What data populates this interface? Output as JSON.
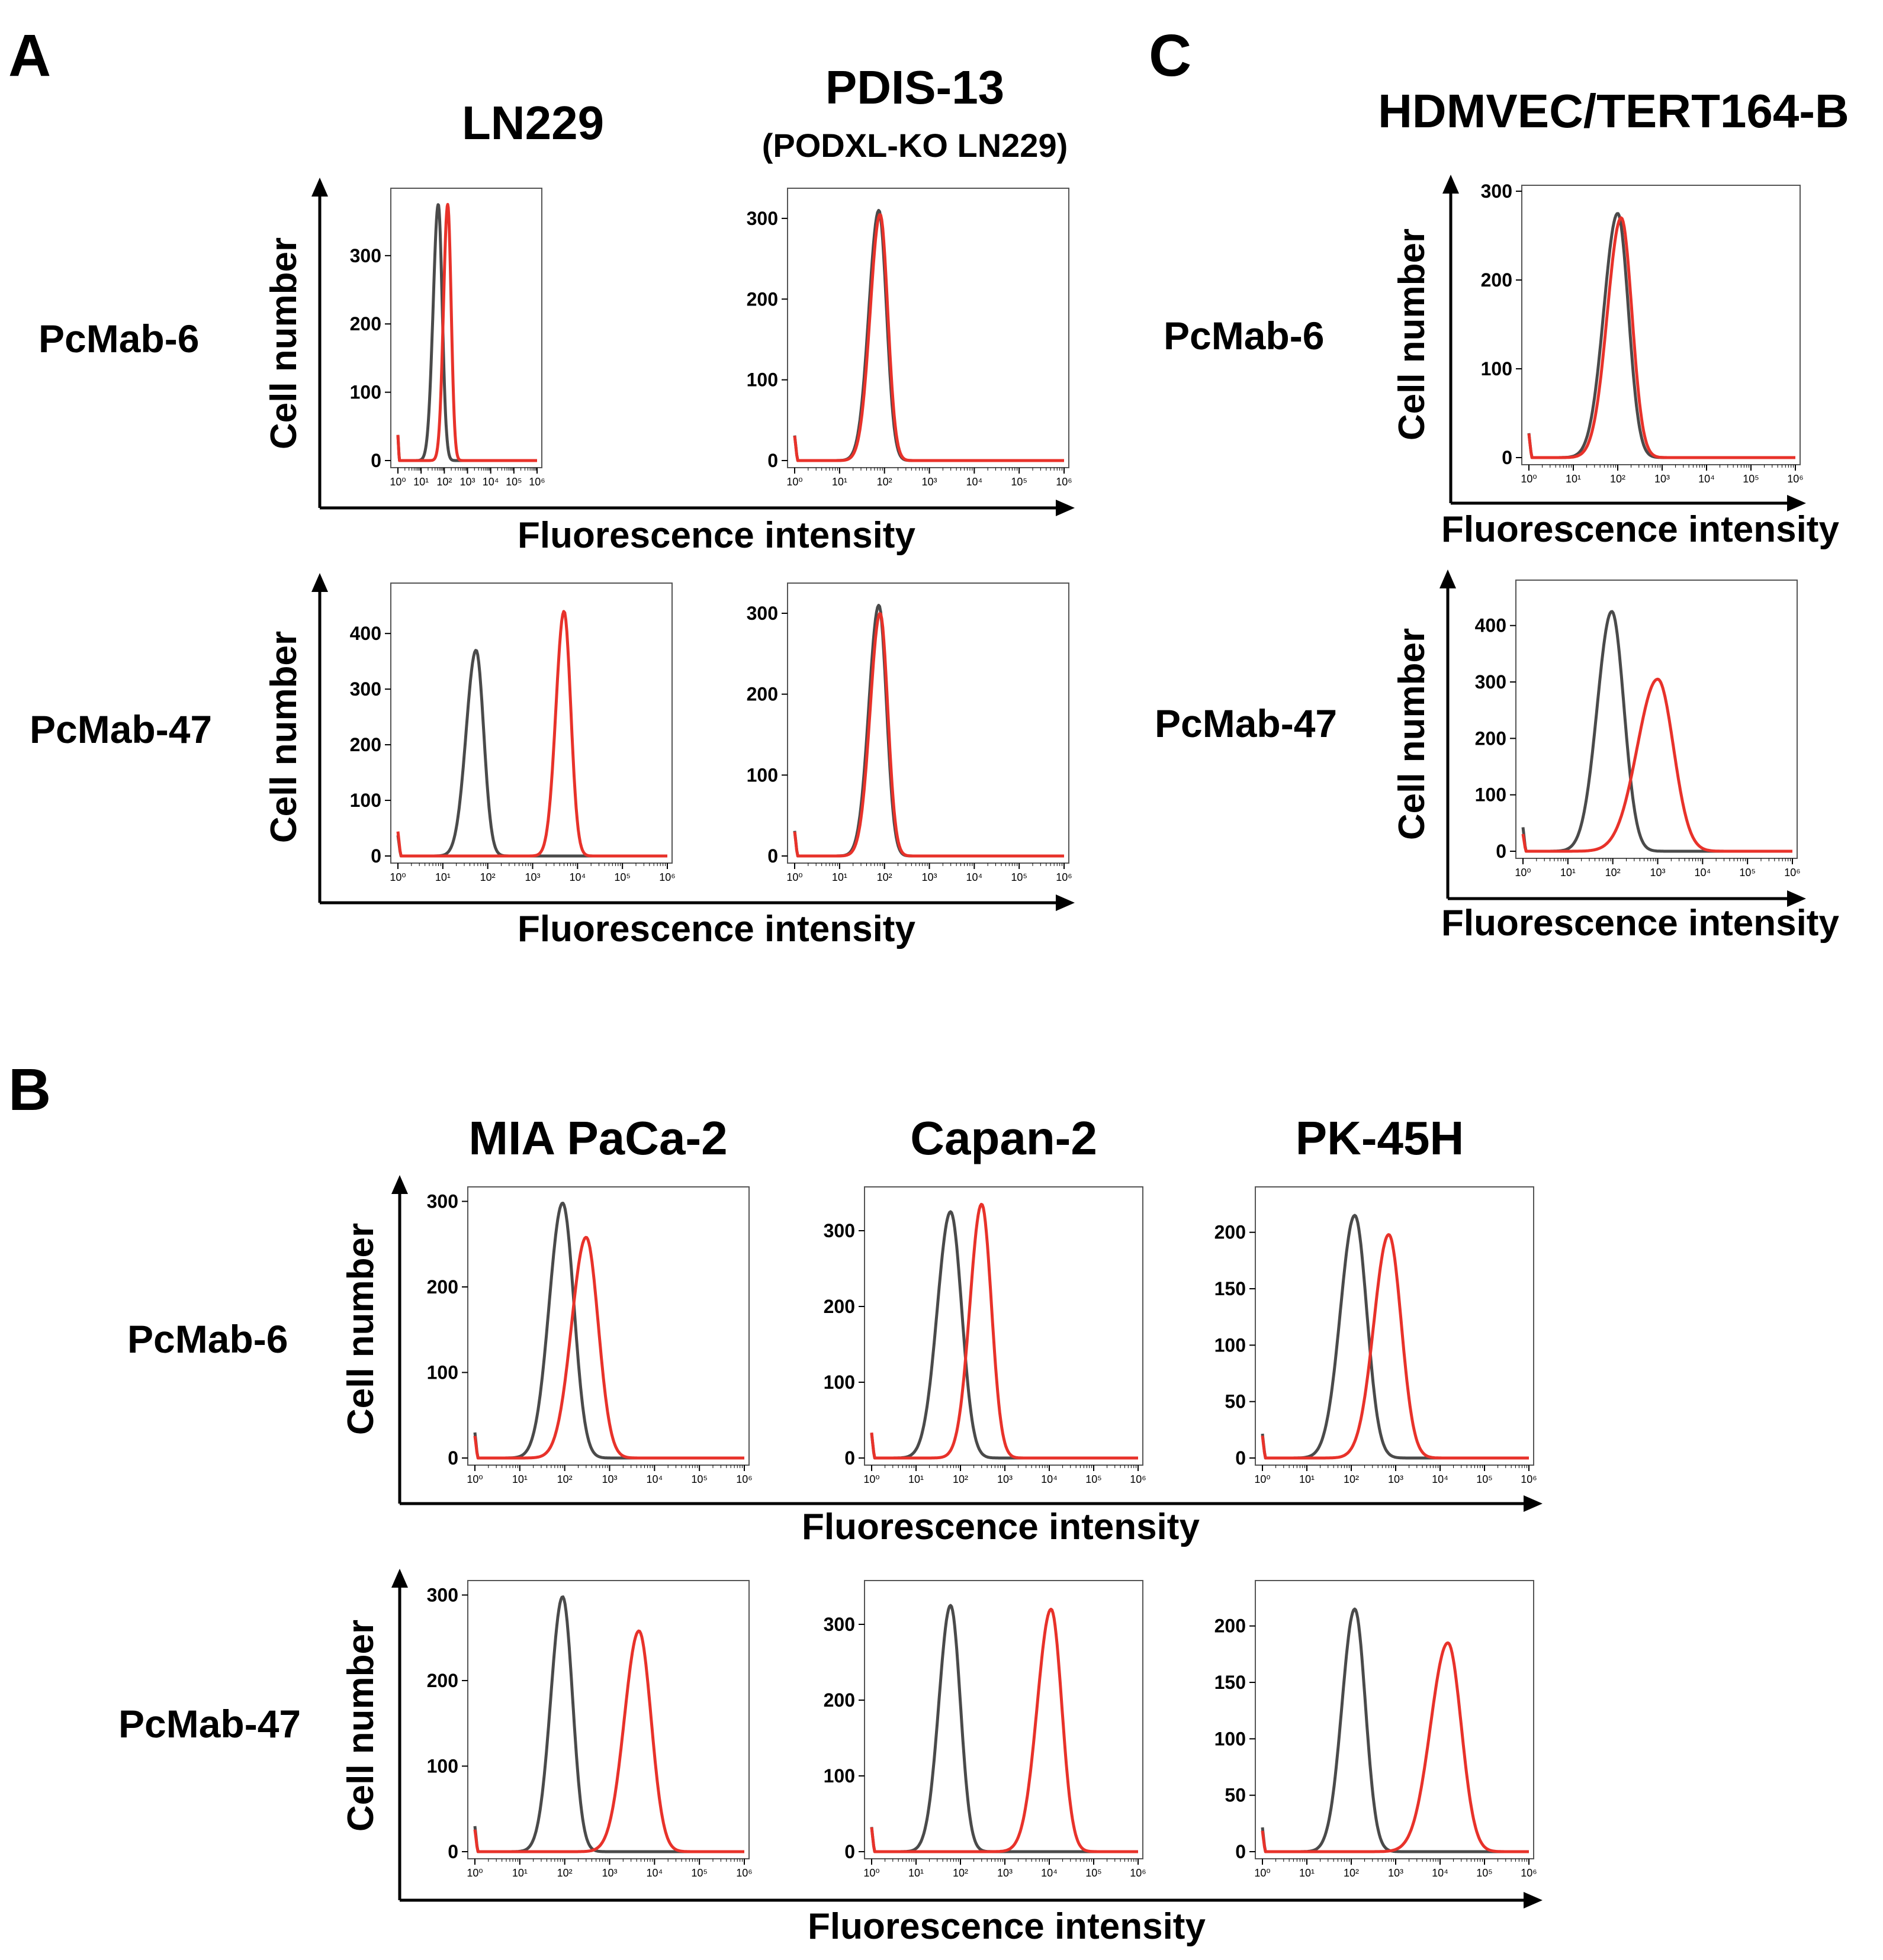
{
  "panels": {
    "A": {
      "letter": "A",
      "column_titles": [
        "LN229",
        "PDIS-13"
      ],
      "column_subtitles": [
        "",
        "(PODXL-KO LN229)"
      ],
      "row_labels": [
        "PcMab-6",
        "PcMab-47"
      ]
    },
    "B": {
      "letter": "B",
      "column_titles": [
        "MIA PaCa-2",
        "Capan-2",
        "PK-45H"
      ],
      "row_labels": [
        "PcMab-6",
        "PcMab-47"
      ]
    },
    "C": {
      "letter": "C",
      "column_titles": [
        "HDMVEC/TERT164-B"
      ],
      "row_labels": [
        "PcMab-6",
        "PcMab-47"
      ]
    }
  },
  "axis_text": {
    "ylabel": "Cell number",
    "xlabel": "Fluorescence intensity"
  },
  "colors": {
    "control": "#4a4a4a",
    "antibody": "#e8322a"
  },
  "chart_data": [
    {
      "type": "line",
      "panel": "A",
      "cell_line": "LN229",
      "antibody": "PcMab-6",
      "x_scale": "log",
      "xlim": [
        1,
        1000000
      ],
      "xticks": [
        "10⁰",
        "10¹",
        "10²",
        "10³",
        "10⁴",
        "10⁵",
        "10⁶"
      ],
      "ylim": [
        0,
        390
      ],
      "yticks": [
        0,
        100,
        200,
        300
      ],
      "series": [
        {
          "color": "control",
          "peak_x": 55,
          "peak_y": 375,
          "width": 0.17,
          "skew": 0.3
        },
        {
          "color": "antibody",
          "peak_x": 140,
          "peak_y": 375,
          "width": 0.15,
          "skew": 0.2
        }
      ]
    },
    {
      "type": "line",
      "panel": "A",
      "cell_line": "PDIS-13",
      "antibody": "PcMab-6",
      "x_scale": "log",
      "xlim": [
        1,
        1000000
      ],
      "xticks": [
        "10⁰",
        "10¹",
        "10²",
        "10³",
        "10⁴",
        "10⁵",
        "10⁶"
      ],
      "ylim": [
        0,
        330
      ],
      "yticks": [
        0,
        100,
        200,
        300
      ],
      "series": [
        {
          "color": "control",
          "peak_x": 75,
          "peak_y": 310,
          "width": 0.17,
          "skew": 0.3
        },
        {
          "color": "antibody",
          "peak_x": 80,
          "peak_y": 305,
          "width": 0.17,
          "skew": 0.3
        }
      ]
    },
    {
      "type": "line",
      "panel": "A",
      "cell_line": "LN229",
      "antibody": "PcMab-47",
      "x_scale": "log",
      "xlim": [
        1,
        1000000
      ],
      "xticks": [
        "10⁰",
        "10¹",
        "10²",
        "10³",
        "10⁴",
        "10⁵",
        "10⁶"
      ],
      "ylim": [
        0,
        480
      ],
      "yticks": [
        0,
        100,
        200,
        300,
        400
      ],
      "series": [
        {
          "color": "control",
          "peak_x": 55,
          "peak_y": 370,
          "width": 0.17,
          "skew": 0.3
        },
        {
          "color": "antibody",
          "peak_x": 5000,
          "peak_y": 440,
          "width": 0.15,
          "skew": 0.2
        }
      ]
    },
    {
      "type": "line",
      "panel": "A",
      "cell_line": "PDIS-13",
      "antibody": "PcMab-47",
      "x_scale": "log",
      "xlim": [
        1,
        1000000
      ],
      "xticks": [
        "10⁰",
        "10¹",
        "10²",
        "10³",
        "10⁴",
        "10⁵",
        "10⁶"
      ],
      "ylim": [
        0,
        330
      ],
      "yticks": [
        0,
        100,
        200,
        300
      ],
      "series": [
        {
          "color": "control",
          "peak_x": 75,
          "peak_y": 310,
          "width": 0.17,
          "skew": 0.3
        },
        {
          "color": "antibody",
          "peak_x": 80,
          "peak_y": 300,
          "width": 0.17,
          "skew": 0.3
        }
      ]
    },
    {
      "type": "line",
      "panel": "B",
      "cell_line": "MIA PaCa-2",
      "antibody": "PcMab-6",
      "x_scale": "log",
      "xlim": [
        1,
        1000000
      ],
      "xticks": [
        "10⁰",
        "10¹",
        "10²",
        "10³",
        "10⁴",
        "10⁵",
        "10⁶"
      ],
      "ylim": [
        0,
        310
      ],
      "yticks": [
        0,
        100,
        200,
        300
      ],
      "series": [
        {
          "color": "control",
          "peak_x": 90,
          "peak_y": 298,
          "width": 0.25,
          "skew": 0.2
        },
        {
          "color": "antibody",
          "peak_x": 300,
          "peak_y": 258,
          "width": 0.27,
          "skew": 0.2
        }
      ]
    },
    {
      "type": "line",
      "panel": "B",
      "cell_line": "Capan-2",
      "antibody": "PcMab-6",
      "x_scale": "log",
      "xlim": [
        1,
        1000000
      ],
      "xticks": [
        "10⁰",
        "10¹",
        "10²",
        "10³",
        "10⁴",
        "10⁵",
        "10⁶"
      ],
      "ylim": [
        0,
        350
      ],
      "yticks": [
        0,
        100,
        200,
        300
      ],
      "series": [
        {
          "color": "control",
          "peak_x": 60,
          "peak_y": 325,
          "width": 0.25,
          "skew": 0.2
        },
        {
          "color": "antibody",
          "peak_x": 300,
          "peak_y": 335,
          "width": 0.22,
          "skew": 0.2
        }
      ]
    },
    {
      "type": "line",
      "panel": "B",
      "cell_line": "PK-45H",
      "antibody": "PcMab-6",
      "x_scale": "log",
      "xlim": [
        1,
        1000000
      ],
      "xticks": [
        "10⁰",
        "10¹",
        "10²",
        "10³",
        "10⁴",
        "10⁵",
        "10⁶"
      ],
      "ylim": [
        0,
        235
      ],
      "yticks": [
        0,
        50,
        100,
        150,
        200
      ],
      "series": [
        {
          "color": "control",
          "peak_x": 120,
          "peak_y": 215,
          "width": 0.27,
          "skew": 0.2
        },
        {
          "color": "antibody",
          "peak_x": 700,
          "peak_y": 198,
          "width": 0.28,
          "skew": 0.2
        }
      ]
    },
    {
      "type": "line",
      "panel": "B",
      "cell_line": "MIA PaCa-2",
      "antibody": "PcMab-47",
      "x_scale": "log",
      "xlim": [
        1,
        1000000
      ],
      "xticks": [
        "10⁰",
        "10¹",
        "10²",
        "10³",
        "10⁴",
        "10⁵",
        "10⁶"
      ],
      "ylim": [
        0,
        310
      ],
      "yticks": [
        0,
        100,
        200,
        300
      ],
      "series": [
        {
          "color": "control",
          "peak_x": 90,
          "peak_y": 298,
          "width": 0.22,
          "skew": 0.2
        },
        {
          "color": "antibody",
          "peak_x": 4500,
          "peak_y": 258,
          "width": 0.27,
          "skew": 0.2
        }
      ]
    },
    {
      "type": "line",
      "panel": "B",
      "cell_line": "Capan-2",
      "antibody": "PcMab-47",
      "x_scale": "log",
      "xlim": [
        1,
        1000000
      ],
      "xticks": [
        "10⁰",
        "10¹",
        "10²",
        "10³",
        "10⁴",
        "10⁵",
        "10⁶"
      ],
      "ylim": [
        0,
        350
      ],
      "yticks": [
        0,
        100,
        200,
        300
      ],
      "series": [
        {
          "color": "control",
          "peak_x": 60,
          "peak_y": 325,
          "width": 0.22,
          "skew": 0.2
        },
        {
          "color": "antibody",
          "peak_x": 11000,
          "peak_y": 320,
          "width": 0.24,
          "skew": 0.3
        }
      ]
    },
    {
      "type": "line",
      "panel": "B",
      "cell_line": "PK-45H",
      "antibody": "PcMab-47",
      "x_scale": "log",
      "xlim": [
        1,
        1000000
      ],
      "xticks": [
        "10⁰",
        "10¹",
        "10²",
        "10³",
        "10⁴",
        "10⁵",
        "10⁶"
      ],
      "ylim": [
        0,
        235
      ],
      "yticks": [
        0,
        50,
        100,
        150,
        200
      ],
      "series": [
        {
          "color": "control",
          "peak_x": 120,
          "peak_y": 215,
          "width": 0.24,
          "skew": 0.2
        },
        {
          "color": "antibody",
          "peak_x": 15000,
          "peak_y": 185,
          "width": 0.3,
          "skew": 0.3
        }
      ]
    },
    {
      "type": "line",
      "panel": "C",
      "cell_line": "HDMVEC/TERT164-B",
      "antibody": "PcMab-6",
      "x_scale": "log",
      "xlim": [
        1,
        1000000
      ],
      "xticks": [
        "10⁰",
        "10¹",
        "10²",
        "10³",
        "10⁴",
        "10⁵",
        "10⁶"
      ],
      "ylim": [
        0,
        300
      ],
      "yticks": [
        0,
        100,
        200,
        300
      ],
      "series": [
        {
          "color": "control",
          "peak_x": 100,
          "peak_y": 275,
          "width": 0.24,
          "skew": 0.3
        },
        {
          "color": "antibody",
          "peak_x": 120,
          "peak_y": 270,
          "width": 0.24,
          "skew": 0.3
        }
      ]
    },
    {
      "type": "line",
      "panel": "C",
      "cell_line": "HDMVEC/TERT164-B",
      "antibody": "PcMab-47",
      "x_scale": "log",
      "xlim": [
        1,
        1000000
      ],
      "xticks": [
        "10⁰",
        "10¹",
        "10²",
        "10³",
        "10⁴",
        "10⁵",
        "10⁶"
      ],
      "ylim": [
        0,
        470
      ],
      "yticks": [
        0,
        100,
        200,
        300,
        400
      ],
      "series": [
        {
          "color": "control",
          "peak_x": 95,
          "peak_y": 425,
          "width": 0.27,
          "skew": 0.2
        },
        {
          "color": "antibody",
          "peak_x": 1000,
          "peak_y": 305,
          "width": 0.35,
          "skew": 0.3
        }
      ]
    }
  ]
}
